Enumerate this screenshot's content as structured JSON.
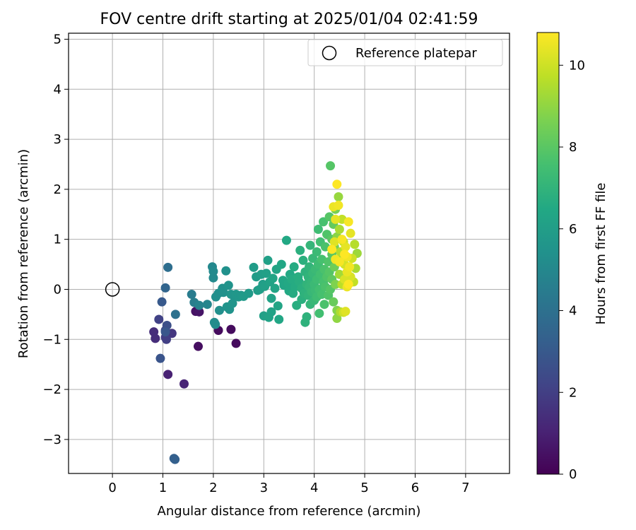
{
  "chart_data": {
    "type": "scatter",
    "title": "FOV centre drift starting at 2025/01/04 02:41:59",
    "xlabel": "Angular distance from reference (arcmin)",
    "ylabel": "Rotation from reference (arcmin)",
    "xlim": [
      -0.87,
      7.87
    ],
    "ylim": [
      -3.68,
      5.12
    ],
    "xticks": [
      0,
      1,
      2,
      3,
      4,
      5,
      6,
      7
    ],
    "yticks": [
      -3,
      -2,
      -1,
      0,
      1,
      2,
      3,
      4,
      5
    ],
    "grid": true,
    "legend": {
      "position": "top-right",
      "entries": [
        "Reference platepar"
      ]
    },
    "reference_point": {
      "name": "Reference platepar",
      "x": 0,
      "y": 0
    },
    "colorbar": {
      "label": "Hours from first FF file",
      "colormap": "viridis",
      "range": [
        0,
        10.8
      ],
      "ticks": [
        0,
        2,
        4,
        6,
        8,
        10
      ]
    },
    "points": [
      [
        2.1,
        -0.82,
        0.3
      ],
      [
        2.35,
        -0.8,
        0.3
      ],
      [
        2.45,
        -1.08,
        0.3
      ],
      [
        1.7,
        -1.14,
        0.4
      ],
      [
        1.65,
        -0.44,
        0.5
      ],
      [
        1.72,
        -0.45,
        0.6
      ],
      [
        1.1,
        -1.7,
        1.0
      ],
      [
        1.42,
        -1.89,
        1.1
      ],
      [
        0.82,
        -0.85,
        1.4
      ],
      [
        0.85,
        -0.98,
        1.4
      ],
      [
        1.18,
        -0.88,
        1.7
      ],
      [
        1.05,
        -0.96,
        1.9
      ],
      [
        1.07,
        -1.0,
        2.0
      ],
      [
        0.92,
        -0.6,
        2.1
      ],
      [
        1.05,
        -0.82,
        2.3
      ],
      [
        1.08,
        -0.72,
        2.6
      ],
      [
        0.95,
        -1.38,
        2.8
      ],
      [
        1.05,
        -0.85,
        2.9
      ],
      [
        0.98,
        -0.25,
        3.0
      ],
      [
        1.22,
        -3.38,
        3.3
      ],
      [
        1.24,
        -3.4,
        3.3
      ],
      [
        1.05,
        0.03,
        3.5
      ],
      [
        1.1,
        0.44,
        3.9
      ],
      [
        1.25,
        -0.5,
        4.0
      ],
      [
        1.57,
        -0.1,
        4.5
      ],
      [
        1.62,
        -0.26,
        4.6
      ],
      [
        1.72,
        -0.32,
        4.8
      ],
      [
        1.88,
        -0.3,
        4.9
      ],
      [
        1.98,
        0.45,
        5.0
      ],
      [
        2.0,
        0.36,
        5.1
      ],
      [
        2.0,
        0.23,
        5.1
      ],
      [
        2.02,
        -0.66,
        5.2
      ],
      [
        2.04,
        -0.7,
        5.2
      ],
      [
        2.05,
        -0.15,
        5.3
      ],
      [
        2.1,
        -0.08,
        5.3
      ],
      [
        2.12,
        -0.42,
        5.3
      ],
      [
        2.18,
        0.02,
        5.4
      ],
      [
        2.2,
        -0.06,
        5.4
      ],
      [
        2.25,
        0.37,
        5.4
      ],
      [
        2.27,
        -0.35,
        5.5
      ],
      [
        2.3,
        0.08,
        5.5
      ],
      [
        2.32,
        -0.4,
        5.5
      ],
      [
        2.35,
        -0.1,
        5.6
      ],
      [
        2.38,
        -0.28,
        5.6
      ],
      [
        2.4,
        -0.12,
        5.6
      ],
      [
        2.45,
        -0.1,
        5.7
      ],
      [
        2.5,
        -0.15,
        5.7
      ],
      [
        2.55,
        -0.12,
        5.7
      ],
      [
        2.6,
        -0.14,
        5.8
      ],
      [
        2.7,
        -0.08,
        5.8
      ],
      [
        2.8,
        0.44,
        5.9
      ],
      [
        2.85,
        0.25,
        5.9
      ],
      [
        2.88,
        -0.02,
        5.9
      ],
      [
        2.92,
        0.0,
        6.0
      ],
      [
        2.95,
        0.3,
        6.0
      ],
      [
        2.98,
        0.1,
        6.0
      ],
      [
        3.0,
        -0.53,
        6.1
      ],
      [
        3.02,
        0.06,
        6.1
      ],
      [
        3.05,
        0.32,
        6.1
      ],
      [
        3.08,
        0.58,
        6.1
      ],
      [
        3.1,
        -0.56,
        6.2
      ],
      [
        3.12,
        0.15,
        6.2
      ],
      [
        3.15,
        -0.18,
        6.2
      ],
      [
        3.15,
        -0.45,
        6.2
      ],
      [
        3.18,
        0.22,
        6.3
      ],
      [
        3.22,
        0.02,
        6.3
      ],
      [
        3.25,
        0.4,
        6.3
      ],
      [
        3.28,
        -0.33,
        6.3
      ],
      [
        3.3,
        -0.6,
        6.4
      ],
      [
        3.35,
        0.5,
        6.4
      ],
      [
        3.38,
        0.18,
        6.4
      ],
      [
        3.4,
        0.08,
        6.4
      ],
      [
        3.45,
        0.98,
        6.5
      ],
      [
        3.48,
        0.12,
        6.5
      ],
      [
        3.5,
        -0.03,
        6.5
      ],
      [
        3.52,
        0.3,
        6.5
      ],
      [
        3.55,
        0.2,
        6.6
      ],
      [
        3.58,
        -0.08,
        6.6
      ],
      [
        3.6,
        0.45,
        6.6
      ],
      [
        3.62,
        0.05,
        6.6
      ],
      [
        3.65,
        -0.32,
        6.7
      ],
      [
        3.68,
        0.25,
        6.7
      ],
      [
        3.7,
        0.15,
        6.7
      ],
      [
        3.72,
        0.78,
        6.8
      ],
      [
        3.75,
        0.02,
        6.8
      ],
      [
        3.75,
        -0.2,
        6.8
      ],
      [
        3.78,
        0.58,
        6.8
      ],
      [
        3.8,
        -0.08,
        6.9
      ],
      [
        3.82,
        0.35,
        6.9
      ],
      [
        3.82,
        -0.66,
        6.9
      ],
      [
        3.85,
        -0.55,
        6.9
      ],
      [
        3.85,
        0.1,
        7.0
      ],
      [
        3.88,
        0.25,
        7.0
      ],
      [
        3.88,
        -0.12,
        7.0
      ],
      [
        3.9,
        0.45,
        7.0
      ],
      [
        3.9,
        0.05,
        7.1
      ],
      [
        3.92,
        0.88,
        7.1
      ],
      [
        3.92,
        -0.3,
        7.1
      ],
      [
        3.95,
        0.15,
        7.1
      ],
      [
        3.95,
        -0.05,
        7.2
      ],
      [
        3.97,
        0.62,
        7.2
      ],
      [
        3.97,
        0.32,
        7.2
      ],
      [
        4.0,
        -0.22,
        7.2
      ],
      [
        4.0,
        0.1,
        7.3
      ],
      [
        4.02,
        0.4,
        7.3
      ],
      [
        4.02,
        -0.02,
        7.3
      ],
      [
        4.05,
        0.75,
        7.3
      ],
      [
        4.05,
        0.2,
        7.4
      ],
      [
        4.05,
        -0.15,
        7.4
      ],
      [
        4.08,
        1.2,
        7.4
      ],
      [
        4.08,
        0.5,
        7.4
      ],
      [
        4.1,
        0.0,
        7.5
      ],
      [
        4.1,
        -0.48,
        7.5
      ],
      [
        4.12,
        0.3,
        7.5
      ],
      [
        4.12,
        0.95,
        7.5
      ],
      [
        4.15,
        -0.1,
        7.6
      ],
      [
        4.15,
        0.6,
        7.6
      ],
      [
        4.18,
        0.15,
        7.6
      ],
      [
        4.18,
        1.35,
        7.6
      ],
      [
        4.2,
        0.4,
        7.7
      ],
      [
        4.2,
        -0.3,
        7.7
      ],
      [
        4.22,
        0.05,
        7.7
      ],
      [
        4.22,
        0.85,
        7.7
      ],
      [
        4.25,
        1.1,
        7.8
      ],
      [
        4.25,
        0.25,
        7.8
      ],
      [
        4.28,
        0.55,
        7.8
      ],
      [
        4.28,
        -0.12,
        7.8
      ],
      [
        4.3,
        1.45,
        7.9
      ],
      [
        4.3,
        0.35,
        7.9
      ],
      [
        4.32,
        2.47,
        7.9
      ],
      [
        4.32,
        0.0,
        7.9
      ],
      [
        4.35,
        0.7,
        8.0
      ],
      [
        4.35,
        1.0,
        8.0
      ],
      [
        4.35,
        0.2,
        8.1
      ],
      [
        4.38,
        1.3,
        8.2
      ],
      [
        4.38,
        -0.25,
        8.3
      ],
      [
        4.4,
        0.45,
        8.4
      ],
      [
        4.4,
        0.85,
        8.5
      ],
      [
        4.42,
        1.6,
        8.6
      ],
      [
        4.42,
        0.1,
        8.7
      ],
      [
        4.45,
        -0.42,
        8.8
      ],
      [
        4.45,
        1.05,
        8.9
      ],
      [
        4.45,
        -0.58,
        9.0
      ],
      [
        4.48,
        1.85,
        9.1
      ],
      [
        4.48,
        0.6,
        9.2
      ],
      [
        4.5,
        0.3,
        9.3
      ],
      [
        4.5,
        1.2,
        9.4
      ],
      [
        4.52,
        -0.45,
        9.5
      ],
      [
        4.52,
        0.75,
        9.6
      ],
      [
        4.55,
        0.1,
        9.7
      ],
      [
        4.55,
        1.4,
        9.8
      ],
      [
        4.58,
        0.95,
        9.9
      ],
      [
        4.58,
        -0.46,
        10.0
      ],
      [
        4.6,
        0.5,
        10.1
      ],
      [
        4.6,
        0.2,
        10.2
      ],
      [
        4.62,
        -0.44,
        10.3
      ],
      [
        4.62,
        0.85,
        10.4
      ],
      [
        4.65,
        0.35,
        10.5
      ],
      [
        4.65,
        0.65,
        10.6
      ],
      [
        4.68,
        1.35,
        10.7
      ],
      [
        4.68,
        0.1,
        10.8
      ],
      [
        4.7,
        0.45,
        10.6
      ],
      [
        4.72,
        1.12,
        10.4
      ],
      [
        4.72,
        0.25,
        10.2
      ],
      [
        4.75,
        0.62,
        10.0
      ],
      [
        4.78,
        0.15,
        9.8
      ],
      [
        4.8,
        0.9,
        9.6
      ],
      [
        4.82,
        0.42,
        9.4
      ],
      [
        4.85,
        0.72,
        9.2
      ],
      [
        4.45,
        2.1,
        10.8
      ],
      [
        4.48,
        1.68,
        10.6
      ],
      [
        4.42,
        1.4,
        10.4
      ],
      [
        4.38,
        1.65,
        10.5
      ],
      [
        4.55,
        1.0,
        10.7
      ],
      [
        4.35,
        0.8,
        10.8
      ],
      [
        4.6,
        0.7,
        10.8
      ],
      [
        4.5,
        0.55,
        10.7
      ],
      [
        4.42,
        0.6,
        10.6
      ],
      [
        4.65,
        0.05,
        10.5
      ],
      [
        4.4,
        0.95,
        10.3
      ]
    ]
  }
}
